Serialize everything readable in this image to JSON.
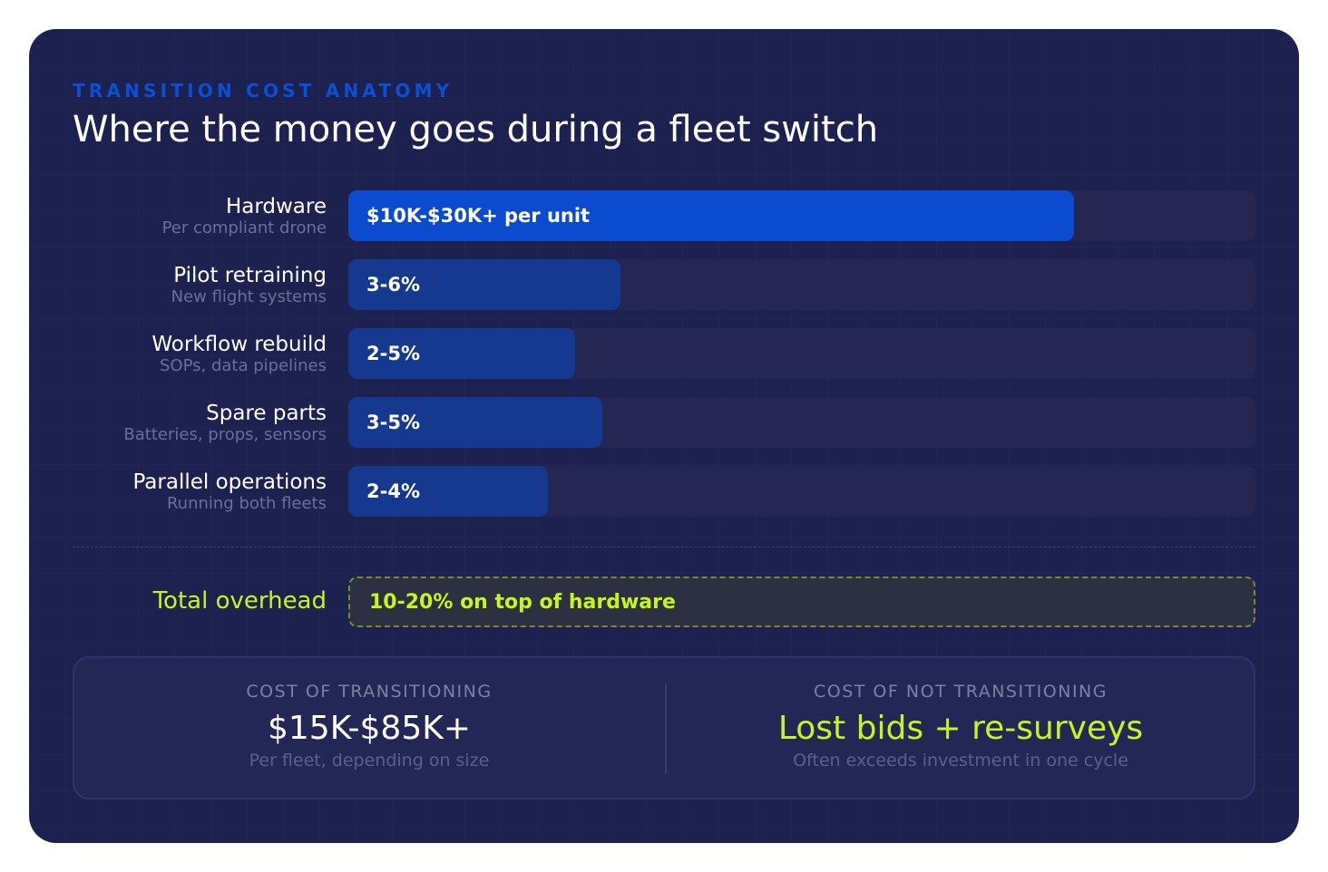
{
  "eyebrow": "TRANSITION COST ANATOMY",
  "title": "Where the money goes during a fleet switch",
  "chart_data": {
    "type": "bar",
    "orientation": "horizontal",
    "max_value": 100,
    "categories": [
      "Hardware",
      "Pilot retraining",
      "Workflow rebuild",
      "Spare parts",
      "Parallel operations"
    ],
    "subtitles": [
      "Per compliant drone",
      "New flight systems",
      "SOPs, data pipelines",
      "Batteries, props, sensors",
      "Running both fleets"
    ],
    "values": [
      80,
      30,
      25,
      28,
      22
    ],
    "value_labels": [
      "$10K-$30K+ per unit",
      "3-6%",
      "2-5%",
      "3-5%",
      "2-4%"
    ],
    "colors": [
      "#0b4ccf",
      "#14398f",
      "#14398f",
      "#14398f",
      "#14398f"
    ],
    "track_color": "#252752"
  },
  "total": {
    "label": "Total overhead",
    "value": "10-20% on top of hardware",
    "color": "#c8f51a"
  },
  "summary": {
    "left": {
      "heading": "COST OF TRANSITIONING",
      "value": "$15K-$85K+",
      "note": "Per fleet, depending on size"
    },
    "right": {
      "heading": "COST OF NOT TRANSITIONING",
      "value": "Lost bids + re-surveys",
      "note": "Often exceeds investment in one cycle"
    }
  }
}
